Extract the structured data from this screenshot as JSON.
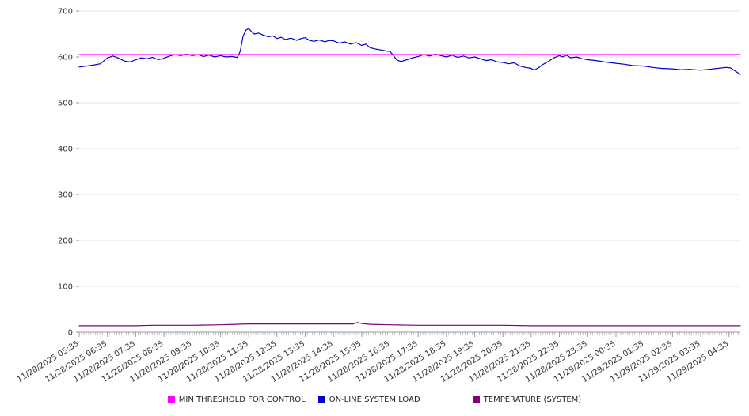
{
  "chart_data": {
    "type": "line",
    "title": "",
    "ylabel": "",
    "xlabel": "",
    "ylim": [
      0,
      700
    ],
    "yticks": [
      0,
      100,
      200,
      300,
      400,
      500,
      600,
      700
    ],
    "xlim": [
      0,
      23.4
    ],
    "minor_ticks_per_hour": 12,
    "grid": true,
    "legend_position": "bottom",
    "grid_color": "#e3e3e3",
    "axis_color": "#9a9a9a",
    "label_color": "#333333",
    "x_labels": [
      "11/28/2025 05:35",
      "11/28/2025 06:35",
      "11/28/2025 07:35",
      "11/28/2025 08:35",
      "11/28/2025 09:35",
      "11/28/2025 10:35",
      "11/28/2025 11:35",
      "11/28/2025 12:35",
      "11/28/2025 13:35",
      "11/28/2025 14:35",
      "11/28/2025 15:35",
      "11/28/2025 16:35",
      "11/28/2025 17:35",
      "11/28/2025 18:35",
      "11/28/2025 19:35",
      "11/28/2025 20:35",
      "11/28/2025 21:35",
      "11/28/2025 22:35",
      "11/28/2025 23:35",
      "11/29/2025 00:35",
      "11/29/2025 01:35",
      "11/29/2025 02:35",
      "11/29/2025 03:35",
      "11/29/2025 04:35"
    ],
    "draw_order": [
      1,
      2,
      0
    ],
    "series": [
      {
        "name": "MIN THRESHOLD FOR CONTROL",
        "color": "#ff00ff",
        "width": 1.4,
        "points": [
          [
            0,
            605
          ],
          [
            23.4,
            605
          ]
        ]
      },
      {
        "name": "ON-LINE SYSTEM LOAD",
        "color": "#0000cd",
        "width": 1.2,
        "points": [
          [
            0,
            578
          ],
          [
            0.25,
            580
          ],
          [
            0.5,
            582
          ],
          [
            0.75,
            585
          ],
          [
            1,
            598
          ],
          [
            1.2,
            602
          ],
          [
            1.4,
            597
          ],
          [
            1.6,
            591
          ],
          [
            1.8,
            589
          ],
          [
            2,
            594
          ],
          [
            2.2,
            598
          ],
          [
            2.4,
            596
          ],
          [
            2.6,
            599
          ],
          [
            2.8,
            594
          ],
          [
            3,
            597
          ],
          [
            3.2,
            602
          ],
          [
            3.4,
            605
          ],
          [
            3.6,
            603
          ],
          [
            3.8,
            606
          ],
          [
            4,
            603
          ],
          [
            4.2,
            605
          ],
          [
            4.4,
            601
          ],
          [
            4.6,
            604
          ],
          [
            4.8,
            600
          ],
          [
            5,
            603
          ],
          [
            5.2,
            600
          ],
          [
            5.4,
            601
          ],
          [
            5.6,
            599
          ],
          [
            5.7,
            612
          ],
          [
            5.8,
            645
          ],
          [
            5.9,
            658
          ],
          [
            6,
            662
          ],
          [
            6.1,
            655
          ],
          [
            6.2,
            650
          ],
          [
            6.35,
            652
          ],
          [
            6.5,
            648
          ],
          [
            6.7,
            644
          ],
          [
            6.85,
            646
          ],
          [
            7,
            640
          ],
          [
            7.15,
            643
          ],
          [
            7.3,
            638
          ],
          [
            7.5,
            641
          ],
          [
            7.7,
            636
          ],
          [
            7.85,
            640
          ],
          [
            8,
            642
          ],
          [
            8.15,
            636
          ],
          [
            8.3,
            634
          ],
          [
            8.5,
            637
          ],
          [
            8.7,
            633
          ],
          [
            8.85,
            636
          ],
          [
            9,
            635
          ],
          [
            9.2,
            630
          ],
          [
            9.4,
            633
          ],
          [
            9.6,
            628
          ],
          [
            9.8,
            631
          ],
          [
            10,
            625
          ],
          [
            10.15,
            628
          ],
          [
            10.3,
            620
          ],
          [
            10.5,
            617
          ],
          [
            10.7,
            615
          ],
          [
            10.85,
            613
          ],
          [
            11,
            612
          ],
          [
            11.1,
            605
          ],
          [
            11.25,
            593
          ],
          [
            11.4,
            590
          ],
          [
            11.6,
            594
          ],
          [
            11.8,
            598
          ],
          [
            12,
            601
          ],
          [
            12.2,
            605
          ],
          [
            12.4,
            602
          ],
          [
            12.6,
            606
          ],
          [
            12.8,
            603
          ],
          [
            13,
            600
          ],
          [
            13.2,
            604
          ],
          [
            13.4,
            599
          ],
          [
            13.6,
            602
          ],
          [
            13.8,
            598
          ],
          [
            14,
            600
          ],
          [
            14.2,
            596
          ],
          [
            14.4,
            592
          ],
          [
            14.6,
            594
          ],
          [
            14.8,
            589
          ],
          [
            15,
            588
          ],
          [
            15.2,
            585
          ],
          [
            15.4,
            587
          ],
          [
            15.6,
            580
          ],
          [
            15.8,
            577
          ],
          [
            16,
            575
          ],
          [
            16.1,
            571
          ],
          [
            16.25,
            576
          ],
          [
            16.4,
            583
          ],
          [
            16.6,
            590
          ],
          [
            16.8,
            598
          ],
          [
            17,
            603
          ],
          [
            17.1,
            600
          ],
          [
            17.25,
            604
          ],
          [
            17.4,
            598
          ],
          [
            17.6,
            600
          ],
          [
            17.8,
            596
          ],
          [
            18,
            594
          ],
          [
            18.3,
            592
          ],
          [
            18.6,
            589
          ],
          [
            19,
            586
          ],
          [
            19.3,
            584
          ],
          [
            19.6,
            581
          ],
          [
            20,
            580
          ],
          [
            20.3,
            577
          ],
          [
            20.6,
            575
          ],
          [
            21,
            574
          ],
          [
            21.3,
            572
          ],
          [
            21.6,
            573
          ],
          [
            22,
            571
          ],
          [
            22.3,
            573
          ],
          [
            22.6,
            575
          ],
          [
            22.9,
            577
          ],
          [
            23.05,
            576
          ],
          [
            23.2,
            570
          ],
          [
            23.4,
            562
          ]
        ]
      },
      {
        "name": "TEMPERATURE (SYSTEM)",
        "color": "#800080",
        "width": 1.2,
        "points": [
          [
            0,
            14
          ],
          [
            1,
            14
          ],
          [
            2,
            14
          ],
          [
            2.6,
            15
          ],
          [
            3,
            15
          ],
          [
            4,
            15
          ],
          [
            5,
            16
          ],
          [
            5.5,
            17
          ],
          [
            6,
            18
          ],
          [
            7,
            18
          ],
          [
            8,
            18
          ],
          [
            9,
            18
          ],
          [
            9.7,
            18
          ],
          [
            9.85,
            21
          ],
          [
            10,
            19
          ],
          [
            10.3,
            17
          ],
          [
            11,
            16
          ],
          [
            12,
            15
          ],
          [
            13,
            15
          ],
          [
            14,
            15
          ],
          [
            15,
            15
          ],
          [
            16,
            14
          ],
          [
            17,
            14
          ],
          [
            18,
            14
          ],
          [
            19,
            14
          ],
          [
            20,
            14
          ],
          [
            21,
            14
          ],
          [
            22,
            14
          ],
          [
            23.4,
            14
          ]
        ]
      }
    ]
  }
}
